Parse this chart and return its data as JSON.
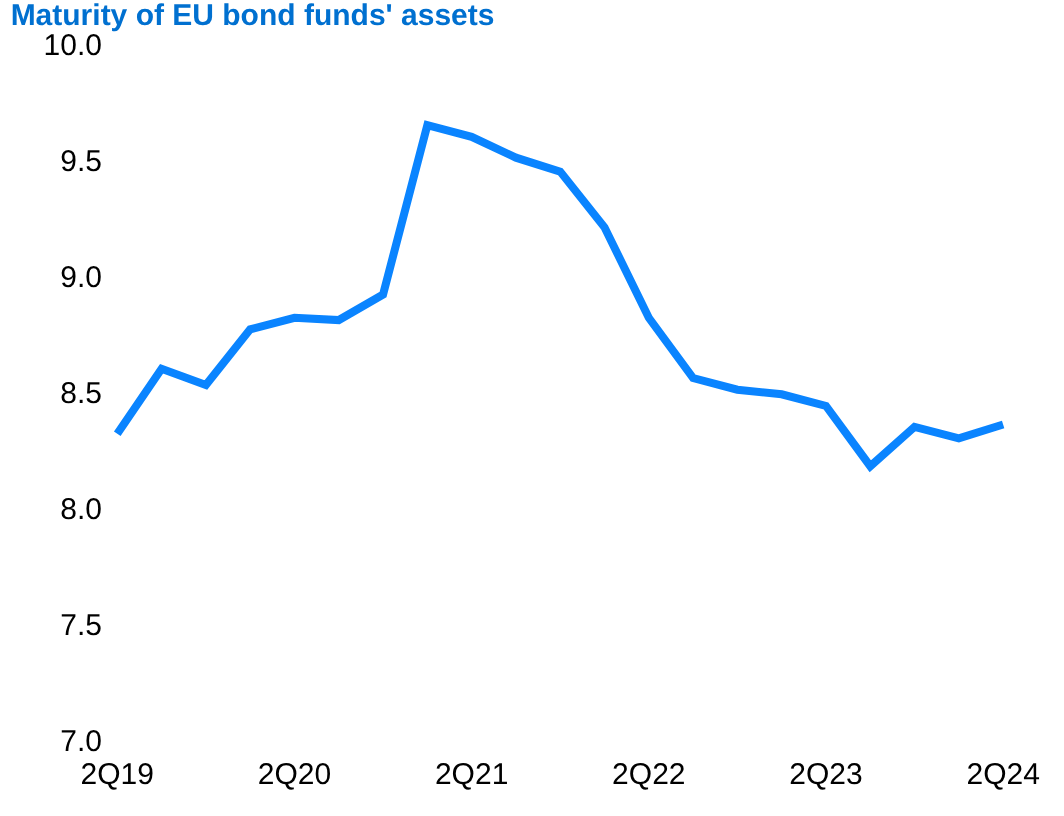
{
  "chart_data": {
    "type": "line",
    "title": "Maturity of EU bond funds' assets",
    "categories": [
      "2Q19",
      null,
      null,
      null,
      "2Q20",
      null,
      null,
      null,
      "2Q21",
      null,
      null,
      null,
      "2Q22",
      null,
      null,
      null,
      "2Q23",
      null,
      null,
      null,
      "2Q24"
    ],
    "series": [
      {
        "color": "#0a84ff",
        "values": [
          8.32,
          8.6,
          8.53,
          8.77,
          8.82,
          8.81,
          8.92,
          9.65,
          9.6,
          9.51,
          9.45,
          9.21,
          8.82,
          8.56,
          8.51,
          8.49,
          8.44,
          8.18,
          8.35,
          8.3,
          8.36
        ]
      }
    ],
    "ylim": [
      7,
      10
    ],
    "yticks": [
      {
        "value": 7,
        "label": "7.0"
      },
      {
        "value": 7.5,
        "label": "7.5"
      },
      {
        "value": 8,
        "label": "8.0"
      },
      {
        "value": 8.5,
        "label": "8.5"
      },
      {
        "value": 9,
        "label": "9.0"
      },
      {
        "value": 9.5,
        "label": "9.5"
      },
      {
        "value": 10,
        "label": "10.0"
      }
    ],
    "grid": false,
    "marker": "none",
    "line_style": "solid"
  }
}
